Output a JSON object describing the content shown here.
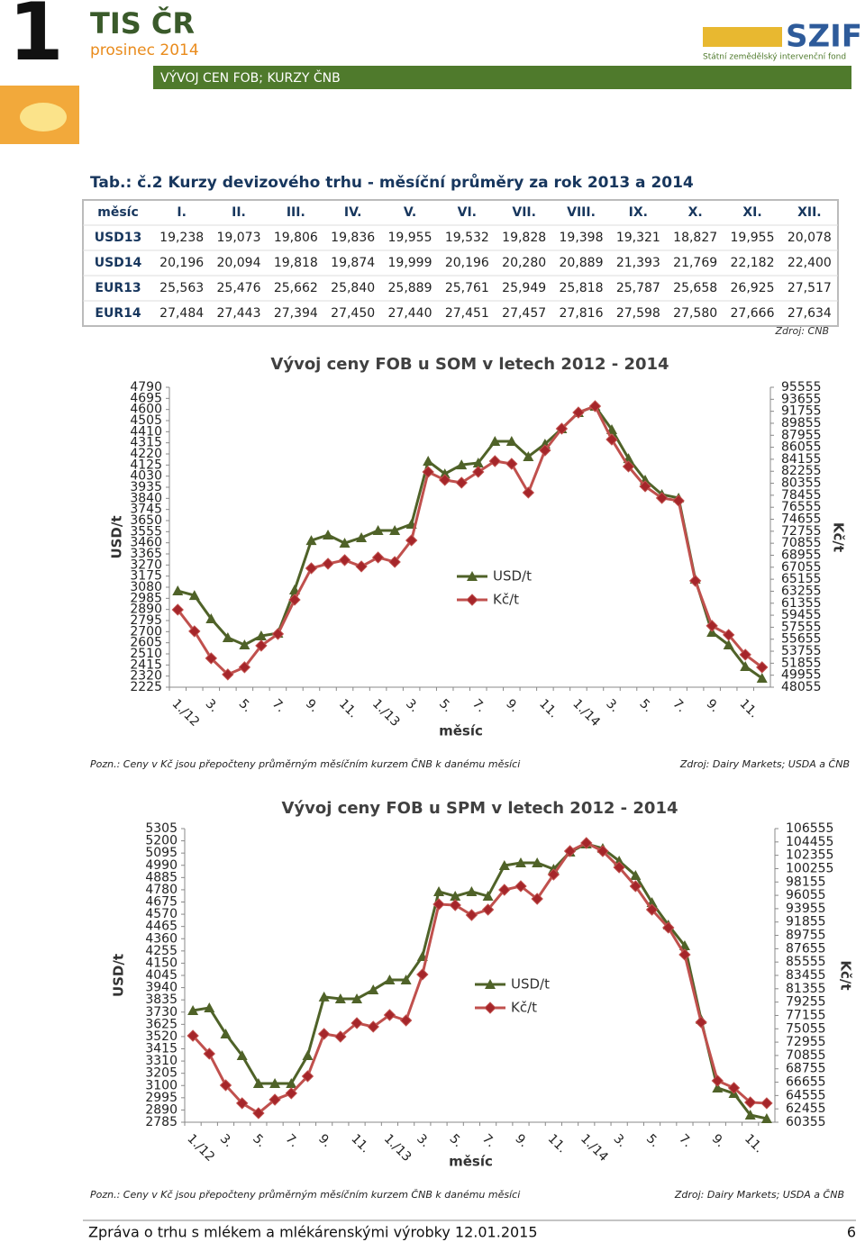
{
  "header": {
    "number": "1",
    "brand": "TIS ČR",
    "date": "prosinec 2014",
    "section": "VÝVOJ CEN FOB; KURZY ČNB",
    "logo": "SZIF",
    "logo_sub": "Státní zemědělský intervenční fond"
  },
  "table": {
    "title": "Tab.: č.2 Kurzy devizového trhu - měsíční průměry za rok 2013 a 2014",
    "columns": [
      "měsíc",
      "I.",
      "II.",
      "III.",
      "IV.",
      "V.",
      "VI.",
      "VII.",
      "VIII.",
      "IX.",
      "X.",
      "XI.",
      "XII."
    ],
    "rows": [
      [
        "USD13",
        "19,238",
        "19,073",
        "19,806",
        "19,836",
        "19,955",
        "19,532",
        "19,828",
        "19,398",
        "19,321",
        "18,827",
        "19,955",
        "20,078"
      ],
      [
        "USD14",
        "20,196",
        "20,094",
        "19,818",
        "19,874",
        "19,999",
        "20,196",
        "20,280",
        "20,889",
        "21,393",
        "21,769",
        "22,182",
        "22,400"
      ],
      [
        "EUR13",
        "25,563",
        "25,476",
        "25,662",
        "25,840",
        "25,889",
        "25,761",
        "25,949",
        "25,818",
        "25,787",
        "25,658",
        "26,925",
        "27,517"
      ],
      [
        "EUR14",
        "27,484",
        "27,443",
        "27,394",
        "27,450",
        "27,440",
        "27,451",
        "27,457",
        "27,816",
        "27,598",
        "27,580",
        "27,666",
        "27,634"
      ]
    ],
    "source": "Zdroj: ČNB"
  },
  "chart_data": [
    {
      "type": "line",
      "title": "Vývoj ceny FOB u SOM v letech 2012 - 2014",
      "x_label": "měsíc",
      "y_label": "USD/t",
      "y2_label": "Kč/t",
      "categories": [
        "1./12",
        null,
        "3.",
        null,
        "5.",
        null,
        "7.",
        null,
        "9.",
        null,
        "11.",
        null,
        "1./13",
        null,
        "3.",
        null,
        "5.",
        null,
        "7.",
        null,
        "9.",
        null,
        "11.",
        null,
        "1./14",
        null,
        "3.",
        null,
        "5.",
        null,
        "7.",
        null,
        "9.",
        null,
        "11.",
        null
      ],
      "series": [
        {
          "name": "USD/t",
          "color": "#4f6228",
          "marker": "triangle",
          "values": [
            3049,
            3010,
            2810,
            2649,
            2587,
            2664,
            2687,
            3057,
            3480,
            3527,
            3457,
            3504,
            3565,
            3565,
            3619,
            4158,
            4050,
            4127,
            4143,
            4328,
            4328,
            4197,
            4305,
            4436,
            4574,
            4628,
            4428,
            4181,
            3997,
            3873,
            3843,
            3149,
            2695,
            2587,
            2402,
            2302
          ]
        },
        {
          "name": "Kč/t",
          "color": "#c0504d",
          "marker": "diamond",
          "axis": "y2",
          "values": [
            60330,
            56910,
            52630,
            50070,
            51210,
            54630,
            56480,
            61900,
            66890,
            67610,
            68180,
            67180,
            68600,
            67890,
            71310,
            82150,
            80870,
            80440,
            82150,
            83860,
            83430,
            78870,
            85570,
            89000,
            91560,
            92560,
            87280,
            83010,
            79870,
            78020,
            77590,
            64900,
            57770,
            56340,
            53200,
            51210
          ]
        }
      ],
      "ylim": [
        2225,
        4790
      ],
      "yticks": [
        2225,
        2320,
        2415,
        2510,
        2605,
        2700,
        2795,
        2890,
        2985,
        3080,
        3175,
        3270,
        3365,
        3460,
        3555,
        3650,
        3745,
        3840,
        3935,
        4030,
        4125,
        4220,
        4315,
        4410,
        4505,
        4600,
        4695,
        4790
      ],
      "y2lim": [
        48055,
        95555
      ],
      "y2ticks": [
        48055,
        49955,
        51855,
        53755,
        55655,
        57555,
        59455,
        61355,
        63255,
        65155,
        67055,
        68955,
        70855,
        72755,
        74655,
        76555,
        78455,
        80355,
        82255,
        84155,
        86055,
        87955,
        89855,
        91755,
        93655,
        95555
      ],
      "note": "Pozn.: Ceny v Kč jsou přepočteny průměrným měsíčním kurzem ČNB k danému měsíci",
      "source": "Zdroj: Dairy Markets; USDA a ČNB"
    },
    {
      "type": "line",
      "title": "Vývoj ceny FOB u SPM v letech 2012 - 2014",
      "x_label": "měsíc",
      "y_label": "USD/t",
      "y2_label": "Kč/t",
      "categories": [
        "1./12",
        null,
        "3.",
        null,
        "5.",
        null,
        "7.",
        null,
        "9.",
        null,
        "11.",
        null,
        "1./13",
        null,
        "3.",
        null,
        "5.",
        null,
        "7.",
        null,
        "9.",
        null,
        "11.",
        null,
        "1./14",
        null,
        "3.",
        null,
        "5.",
        null,
        "7.",
        null,
        "9.",
        null,
        "11.",
        null
      ],
      "series": [
        {
          "name": "USD/t",
          "color": "#4f6228",
          "marker": "triangle",
          "values": [
            3744,
            3767,
            3543,
            3357,
            3117,
            3117,
            3117,
            3357,
            3860,
            3844,
            3844,
            3921,
            4006,
            4006,
            4207,
            4764,
            4725,
            4764,
            4725,
            4988,
            5011,
            5011,
            4957,
            5104,
            5174,
            5135,
            5027,
            4903,
            4671,
            4478,
            4300,
            3666,
            3079,
            3032,
            2847,
            2816
          ]
        },
        {
          "name": "Kč/t",
          "color": "#c0504d",
          "marker": "diamond",
          "axis": "y2",
          "values": [
            73960,
            71130,
            66170,
            63340,
            61780,
            63900,
            64900,
            67590,
            74250,
            73820,
            75950,
            75380,
            77220,
            76370,
            83600,
            94650,
            94510,
            92950,
            93800,
            96920,
            97490,
            95500,
            99330,
            103010,
            104290,
            103010,
            100460,
            97490,
            93800,
            90970,
            86720,
            76090,
            66880,
            65750,
            63480,
            63340
          ]
        }
      ],
      "ylim": [
        2785,
        5305
      ],
      "yticks": [
        2785,
        2890,
        2995,
        3100,
        3205,
        3310,
        3415,
        3520,
        3625,
        3730,
        3835,
        3940,
        4045,
        4150,
        4255,
        4360,
        4465,
        4570,
        4675,
        4780,
        4885,
        4990,
        5095,
        5200,
        5305
      ],
      "y2lim": [
        60355,
        106555
      ],
      "y2ticks": [
        60355,
        62455,
        64555,
        66655,
        68755,
        70855,
        72955,
        75055,
        77155,
        79255,
        81355,
        83455,
        85555,
        87655,
        89755,
        91855,
        93955,
        96055,
        98155,
        100255,
        102355,
        104455,
        106555
      ],
      "note": "Pozn.: Ceny v Kč jsou přepočteny průměrným měsíčním kurzem ČNB k danému měsíci",
      "source": "Zdroj: Dairy Markets; USDA a ČNB"
    }
  ],
  "footer": {
    "text": "Zpráva o trhu s mlékem a mlékárenskými výrobky 12.01.2015",
    "page": "6"
  }
}
